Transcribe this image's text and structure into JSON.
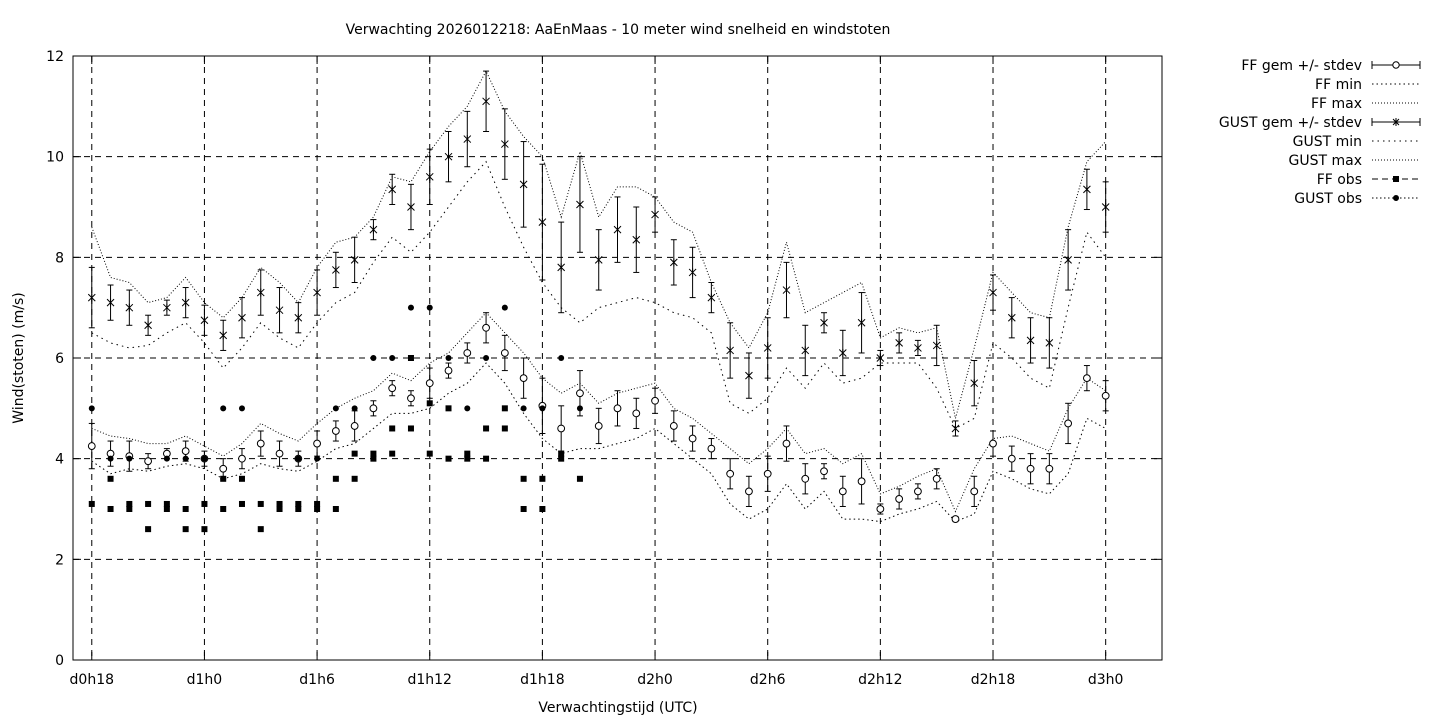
{
  "chart_data": {
    "type": "scatter",
    "title": "Verwachting 2026012218: AaEnMaas - 10 meter wind snelheid en windstoten",
    "xlabel": "Verwachtingstijd (UTC)",
    "ylabel": "Wind(stoten) (m/s)",
    "xlim": [
      -1,
      57
    ],
    "ylim": [
      0,
      12
    ],
    "x_unit": "hours since d0h18",
    "xticks": [
      {
        "x": 0,
        "label": "d0h18"
      },
      {
        "x": 6,
        "label": "d1h0"
      },
      {
        "x": 12,
        "label": "d1h6"
      },
      {
        "x": 18,
        "label": "d1h12"
      },
      {
        "x": 24,
        "label": "d1h18"
      },
      {
        "x": 30,
        "label": "d2h0"
      },
      {
        "x": 36,
        "label": "d2h6"
      },
      {
        "x": 42,
        "label": "d2h12"
      },
      {
        "x": 48,
        "label": "d2h18"
      },
      {
        "x": 54,
        "label": "d3h0"
      }
    ],
    "yticks": [
      0,
      2,
      4,
      6,
      8,
      10,
      12
    ],
    "grid": true,
    "legend_position": "outside-right",
    "legend": [
      {
        "key": "ff_mean",
        "label": "FF gem +/- stdev"
      },
      {
        "key": "ff_min",
        "label": "FF min"
      },
      {
        "key": "ff_max",
        "label": "FF max"
      },
      {
        "key": "gust_mean",
        "label": "GUST gem +/- stdev"
      },
      {
        "key": "gust_min",
        "label": "GUST min"
      },
      {
        "key": "gust_max",
        "label": "GUST max"
      },
      {
        "key": "ff_obs",
        "label": "FF obs"
      },
      {
        "key": "gust_obs",
        "label": "GUST obs"
      }
    ],
    "forecast_x": [
      0,
      1,
      2,
      3,
      4,
      5,
      6,
      7,
      8,
      9,
      10,
      11,
      12,
      13,
      14,
      15,
      16,
      17,
      18,
      19,
      20,
      21,
      22,
      23,
      24,
      25,
      26,
      27,
      28,
      29,
      30,
      31,
      32,
      33,
      34,
      35,
      36,
      37,
      38,
      39,
      40,
      41,
      42,
      43,
      44,
      45,
      46,
      47,
      48,
      49,
      50,
      51,
      52,
      53,
      54
    ],
    "series": [
      {
        "key": "ff_mean",
        "values": [
          4.25,
          4.1,
          4.05,
          3.95,
          4.1,
          4.15,
          4.0,
          3.8,
          4.0,
          4.3,
          4.1,
          4.0,
          4.3,
          4.55,
          4.65,
          5.0,
          5.4,
          5.2,
          5.5,
          5.75,
          6.1,
          6.6,
          6.1,
          5.6,
          5.05,
          4.6,
          5.3,
          4.65,
          5.0,
          4.9,
          5.15,
          4.65,
          4.4,
          4.2,
          3.7,
          3.35,
          3.7,
          4.3,
          3.6,
          3.75,
          3.35,
          3.55,
          3.0,
          3.2,
          3.35,
          3.6,
          2.8,
          3.35,
          4.3,
          4.0,
          3.8,
          3.8,
          4.7,
          5.6,
          5.25
        ],
        "stdev": [
          0.45,
          0.25,
          0.3,
          0.15,
          0.1,
          0.2,
          0.15,
          0.2,
          0.2,
          0.25,
          0.25,
          0.15,
          0.25,
          0.2,
          0.3,
          0.15,
          0.15,
          0.15,
          0.3,
          0.15,
          0.2,
          0.3,
          0.35,
          0.4,
          0.55,
          0.45,
          0.45,
          0.35,
          0.35,
          0.3,
          0.25,
          0.3,
          0.25,
          0.2,
          0.3,
          0.3,
          0.35,
          0.35,
          0.3,
          0.15,
          0.3,
          0.45,
          0.1,
          0.2,
          0.15,
          0.2,
          0.05,
          0.3,
          0.25,
          0.25,
          0.3,
          0.3,
          0.4,
          0.25,
          0.3
        ]
      },
      {
        "key": "ff_min",
        "values": [
          3.95,
          3.7,
          3.8,
          3.75,
          3.85,
          3.9,
          3.8,
          3.6,
          3.7,
          3.9,
          3.8,
          3.75,
          3.95,
          4.2,
          4.3,
          4.6,
          4.9,
          4.9,
          5.0,
          5.3,
          5.5,
          5.9,
          5.5,
          4.9,
          4.4,
          4.1,
          4.2,
          4.2,
          4.3,
          4.4,
          4.6,
          4.3,
          4.0,
          3.7,
          3.1,
          2.8,
          3.0,
          3.5,
          3.0,
          3.35,
          2.8,
          2.8,
          2.75,
          2.9,
          3.0,
          3.15,
          2.75,
          2.9,
          3.75,
          3.6,
          3.4,
          3.3,
          3.7,
          4.8,
          4.6
        ]
      },
      {
        "key": "ff_max",
        "values": [
          4.6,
          4.45,
          4.4,
          4.3,
          4.3,
          4.45,
          4.25,
          4.05,
          4.3,
          4.7,
          4.5,
          4.35,
          4.7,
          5.0,
          5.2,
          5.35,
          5.7,
          5.55,
          5.9,
          6.1,
          6.5,
          6.9,
          6.5,
          6.1,
          5.6,
          5.3,
          5.5,
          5.1,
          5.3,
          5.4,
          5.5,
          5.0,
          4.8,
          4.5,
          4.2,
          3.9,
          4.2,
          4.6,
          4.1,
          4.2,
          3.9,
          4.1,
          3.3,
          3.45,
          3.65,
          3.8,
          2.95,
          3.8,
          4.4,
          4.45,
          4.3,
          4.15,
          5.0,
          5.6,
          5.35
        ]
      },
      {
        "key": "gust_mean",
        "values": [
          7.2,
          7.1,
          7.0,
          6.65,
          7.0,
          7.1,
          6.75,
          6.45,
          6.8,
          7.3,
          6.95,
          6.8,
          7.3,
          7.75,
          7.95,
          8.55,
          9.35,
          9.0,
          9.6,
          10.0,
          10.35,
          11.1,
          10.25,
          9.45,
          8.7,
          7.8,
          9.05,
          7.95,
          8.55,
          8.35,
          8.85,
          7.9,
          7.7,
          7.2,
          6.15,
          5.65,
          6.2,
          7.35,
          6.15,
          6.7,
          6.1,
          6.7,
          6.0,
          6.3,
          6.2,
          6.25,
          4.6,
          5.5,
          7.3,
          6.8,
          6.35,
          6.3,
          7.95,
          9.35,
          9.0
        ],
        "stdev": [
          0.6,
          0.35,
          0.35,
          0.2,
          0.15,
          0.3,
          0.3,
          0.3,
          0.4,
          0.45,
          0.45,
          0.3,
          0.45,
          0.35,
          0.45,
          0.2,
          0.3,
          0.45,
          0.55,
          0.5,
          0.55,
          0.6,
          0.7,
          0.85,
          1.15,
          0.9,
          0.95,
          0.6,
          0.65,
          0.65,
          0.35,
          0.45,
          0.5,
          0.3,
          0.55,
          0.45,
          0.6,
          0.55,
          0.5,
          0.2,
          0.45,
          0.6,
          0.15,
          0.2,
          0.15,
          0.4,
          0.15,
          0.45,
          0.35,
          0.4,
          0.45,
          0.5,
          0.6,
          0.4,
          0.5
        ]
      },
      {
        "key": "gust_min",
        "values": [
          6.5,
          6.3,
          6.2,
          6.25,
          6.5,
          6.7,
          6.3,
          5.8,
          6.2,
          6.7,
          6.4,
          6.2,
          6.7,
          7.1,
          7.3,
          7.9,
          8.4,
          8.1,
          8.5,
          9.0,
          9.5,
          9.9,
          9.0,
          8.2,
          7.5,
          7.0,
          6.7,
          7.0,
          7.1,
          7.2,
          7.1,
          6.9,
          6.8,
          6.5,
          5.1,
          4.9,
          5.2,
          5.8,
          5.4,
          5.9,
          5.5,
          5.6,
          5.9,
          5.9,
          5.9,
          5.4,
          4.6,
          4.8,
          6.3,
          6.0,
          5.6,
          5.4,
          7.0,
          8.5,
          8.0
        ]
      },
      {
        "key": "gust_max",
        "values": [
          8.6,
          7.6,
          7.5,
          7.1,
          7.2,
          7.6,
          7.1,
          6.8,
          7.2,
          7.8,
          7.5,
          7.1,
          7.8,
          8.3,
          8.4,
          8.8,
          9.6,
          9.5,
          10.1,
          10.6,
          11.0,
          11.7,
          10.9,
          10.4,
          10.0,
          8.8,
          10.1,
          8.8,
          9.4,
          9.4,
          9.2,
          8.7,
          8.5,
          7.5,
          6.7,
          6.2,
          6.9,
          8.3,
          6.9,
          7.1,
          7.3,
          7.5,
          6.4,
          6.6,
          6.5,
          6.6,
          4.8,
          6.2,
          7.7,
          7.3,
          6.9,
          6.8,
          8.6,
          9.9,
          10.3
        ]
      }
    ],
    "ff_obs": {
      "x": [
        0,
        1,
        1,
        2,
        2,
        3,
        3,
        4,
        4,
        5,
        5,
        6,
        6,
        7,
        7,
        8,
        8,
        9,
        9,
        10,
        10,
        11,
        11,
        12,
        12,
        13,
        13,
        14,
        14,
        15,
        15,
        16,
        16,
        17,
        17,
        18,
        18,
        19,
        19,
        20,
        20,
        21,
        21,
        22,
        22,
        23,
        23,
        24,
        24,
        25,
        25,
        26
      ],
      "y": [
        3.1,
        3.6,
        3.0,
        3.1,
        3.0,
        2.6,
        3.1,
        3.0,
        3.1,
        2.6,
        3.0,
        2.6,
        3.1,
        3.6,
        3.0,
        3.6,
        3.1,
        2.6,
        3.1,
        3.1,
        3.0,
        3.1,
        3.0,
        3.1,
        3.0,
        3.6,
        3.0,
        4.1,
        3.6,
        4.1,
        4.0,
        4.6,
        4.1,
        6.0,
        4.6,
        5.1,
        4.1,
        5.0,
        4.0,
        4.1,
        4.0,
        4.6,
        4.0,
        5.0,
        4.6,
        3.6,
        3.0,
        3.6,
        3.0,
        4.1,
        4.0,
        3.6
      ]
    },
    "gust_obs": {
      "x": [
        0,
        1,
        2,
        4,
        5,
        6,
        7,
        8,
        11,
        12,
        13,
        14,
        15,
        16,
        17,
        18,
        19,
        20,
        21,
        22,
        23,
        24,
        25,
        26
      ],
      "y": [
        5.0,
        4.0,
        4.0,
        4.0,
        4.0,
        4.0,
        5.0,
        5.0,
        4.0,
        4.0,
        5.0,
        5.0,
        6.0,
        6.0,
        7.0,
        7.0,
        6.0,
        5.0,
        6.0,
        7.0,
        5.0,
        5.0,
        6.0,
        5.0
      ]
    }
  }
}
